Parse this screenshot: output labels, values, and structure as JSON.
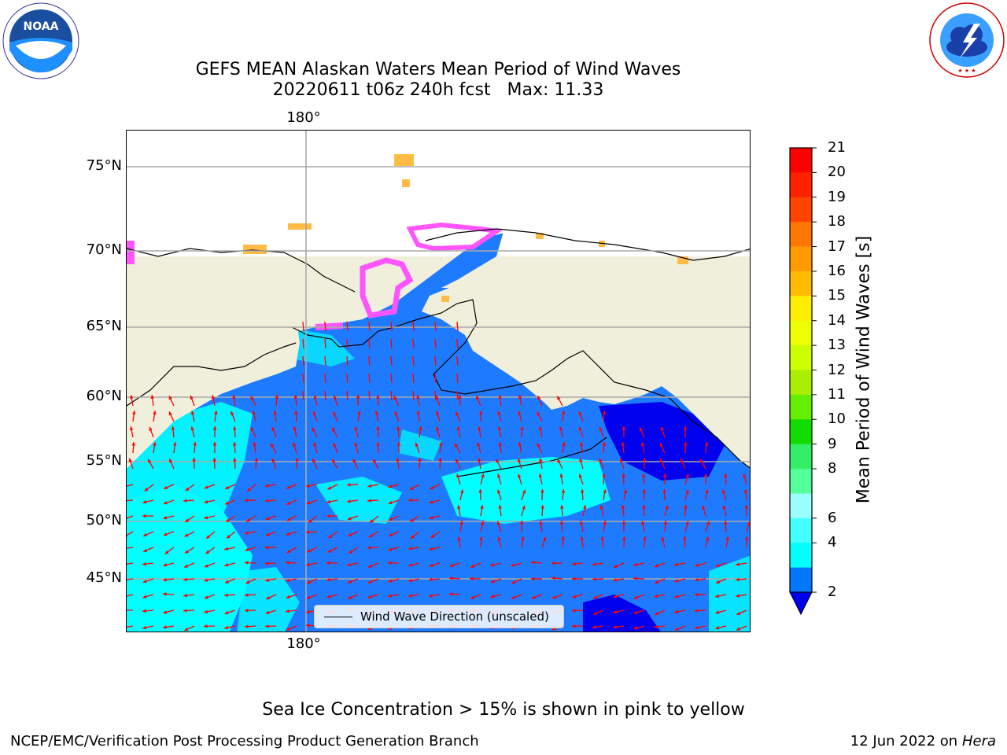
{
  "title": {
    "line1": "GEFS MEAN Alaskan Waters Mean Period of Wind Waves",
    "line2": "20220611 t06z 240h fcst   Max: 11.33"
  },
  "map": {
    "lat_labels": [
      "75°N",
      "70°N",
      "65°N",
      "60°N",
      "55°N",
      "50°N",
      "45°N"
    ],
    "lon_label_top": "180°",
    "lon_label_bottom": "180°",
    "legend_label": "Wind Wave Direction (unscaled)"
  },
  "colorbar": {
    "label": "Mean Period of Wind Waves [s]",
    "ticks": [
      "21",
      "20",
      "19",
      "18",
      "17",
      "16",
      "15",
      "14",
      "13",
      "12",
      "11",
      "10",
      "9",
      "8",
      "6",
      "4",
      "2"
    ],
    "colors": [
      "#ff0000",
      "#ff2200",
      "#ff4400",
      "#ff7700",
      "#ff9900",
      "#ffbb00",
      "#ffee00",
      "#eeff00",
      "#ccff00",
      "#aaee00",
      "#66ee00",
      "#11dd00",
      "#33ee66",
      "#55ff99",
      "#99ffff",
      "#44ffff",
      "#00ffff",
      "#0077ff"
    ],
    "under_color": "#0000ee"
  },
  "colors": {
    "land": "#efefdb",
    "ocean_shallow": "#1e7bff",
    "ocean_cyan": "#00ffff",
    "ocean_deep": "#0000ee",
    "arrow": "#ff0000",
    "sea_ice_pink": "#ff55ff",
    "sea_ice_orange": "#ffbb44"
  },
  "sea_ice_note": "Sea Ice Concentration > 15% is shown in pink to yellow",
  "footer": {
    "left": "NCEP/EMC/Verification Post Processing Product Generation Branch",
    "right_date": "12 Jun 2022 on",
    "right_machine": "Hera"
  },
  "logos": {
    "left_text": "NOAA",
    "left_ring": "NATIONAL OCEANIC AND ATMOSPHERIC ADMINISTRATION",
    "right_ring": "NATIONAL WEATHER SERVICE"
  }
}
